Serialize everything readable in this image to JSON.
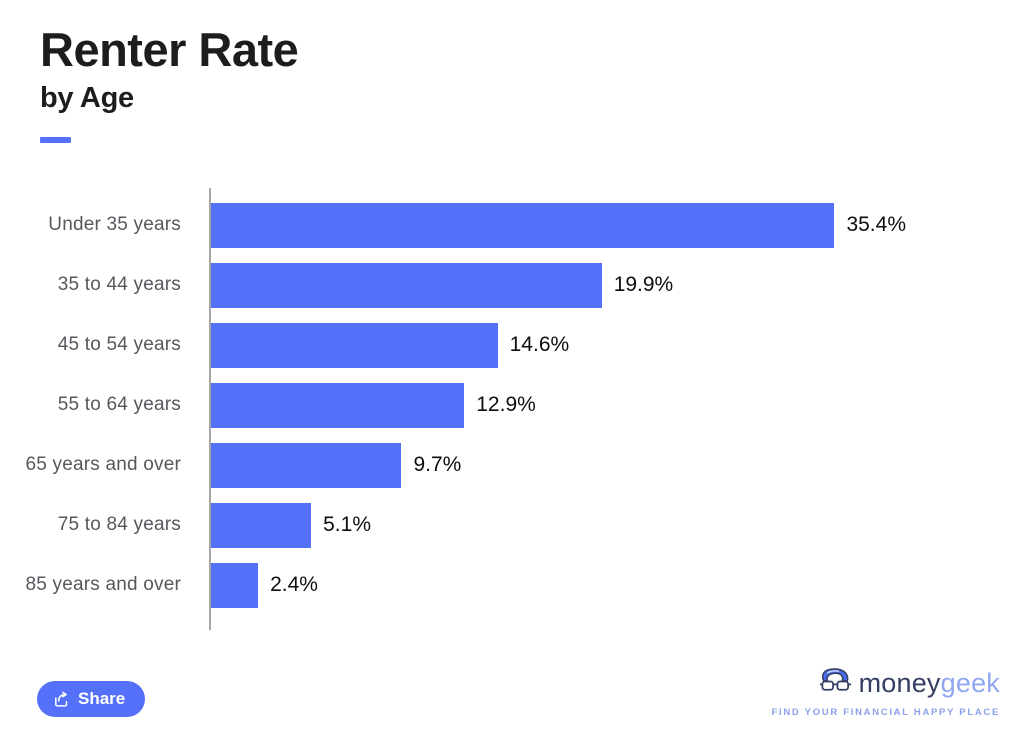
{
  "header": {
    "title": "Renter Rate",
    "subtitle": "by Age",
    "accent_color": "#5571fa"
  },
  "chart_data": {
    "type": "bar",
    "orientation": "horizontal",
    "title": "Renter Rate by Age",
    "categories": [
      "Under 35 years",
      "35 to 44 years",
      "45 to 54 years",
      "55 to 64 years",
      "65 years and over",
      "75 to 84 years",
      "85 years and over"
    ],
    "values": [
      35.4,
      19.9,
      14.6,
      12.9,
      9.7,
      5.1,
      2.4
    ],
    "value_labels": [
      "35.4%",
      "19.9%",
      "14.6%",
      "12.9%",
      "9.7%",
      "5.1%",
      "2.4%"
    ],
    "xlabel": "",
    "ylabel": "",
    "xlim": [
      0,
      35.4
    ],
    "grid": false,
    "legend": false,
    "bar_color": "#5571fa",
    "axis_color": "#a6a6a6",
    "category_label_color": "#55585d",
    "value_label_color": "#0e0e0e"
  },
  "footer": {
    "share_label": "Share",
    "brand": {
      "name_primary": "money",
      "name_secondary": "geek",
      "tagline": "FIND YOUR FINANCIAL HAPPY PLACE",
      "navy": "#333e62",
      "periwinkle": "#8fa7f0"
    }
  }
}
